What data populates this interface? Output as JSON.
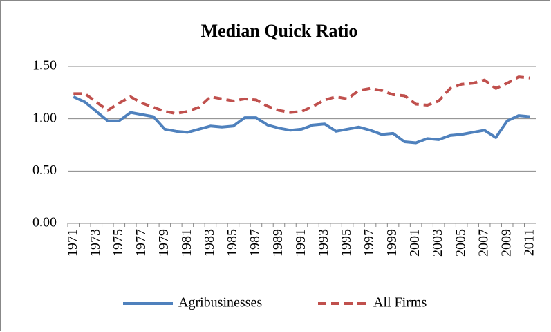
{
  "chart_data": {
    "type": "line",
    "title": "Median Quick Ratio",
    "categories": [
      "1971",
      null,
      "1973",
      null,
      "1975",
      null,
      "1977",
      null,
      "1979",
      null,
      "1981",
      null,
      "1983",
      null,
      "1985",
      null,
      "1987",
      null,
      "1989",
      null,
      "1991",
      null,
      "1993",
      null,
      "1995",
      null,
      "1997",
      null,
      "1999",
      null,
      "2001",
      null,
      "2003",
      null,
      "2005",
      null,
      "2007",
      null,
      "2009",
      null,
      "2011"
    ],
    "series": [
      {
        "name": "Agribusinesses",
        "color": "#4f81bd",
        "dashed": false,
        "values": [
          1.21,
          1.16,
          1.07,
          0.98,
          0.98,
          1.06,
          1.04,
          1.02,
          0.9,
          0.88,
          0.87,
          0.9,
          0.93,
          0.92,
          0.93,
          1.01,
          1.01,
          0.94,
          0.91,
          0.89,
          0.9,
          0.94,
          0.95,
          0.88,
          0.9,
          0.92,
          0.89,
          0.85,
          0.86,
          0.78,
          0.77,
          0.81,
          0.8,
          0.84,
          0.85,
          0.87,
          0.89,
          0.82,
          0.98,
          1.03,
          1.02
        ]
      },
      {
        "name": "All Firms",
        "color": "#c0504d",
        "dashed": true,
        "values": [
          1.24,
          1.24,
          1.16,
          1.08,
          1.15,
          1.21,
          1.15,
          1.11,
          1.07,
          1.05,
          1.07,
          1.11,
          1.21,
          1.19,
          1.17,
          1.19,
          1.18,
          1.12,
          1.08,
          1.06,
          1.07,
          1.12,
          1.18,
          1.21,
          1.19,
          1.27,
          1.29,
          1.27,
          1.23,
          1.22,
          1.14,
          1.13,
          1.17,
          1.29,
          1.33,
          1.34,
          1.37,
          1.29,
          1.34,
          1.4,
          1.39
        ]
      }
    ],
    "ylim": [
      0,
      1.5
    ],
    "yticks": [
      {
        "value": 0,
        "label": "0.00"
      },
      {
        "value": 0.5,
        "label": "0.50"
      },
      {
        "value": 1,
        "label": "1.00"
      },
      {
        "value": 1.5,
        "label": "1.50"
      }
    ],
    "grid": true
  }
}
